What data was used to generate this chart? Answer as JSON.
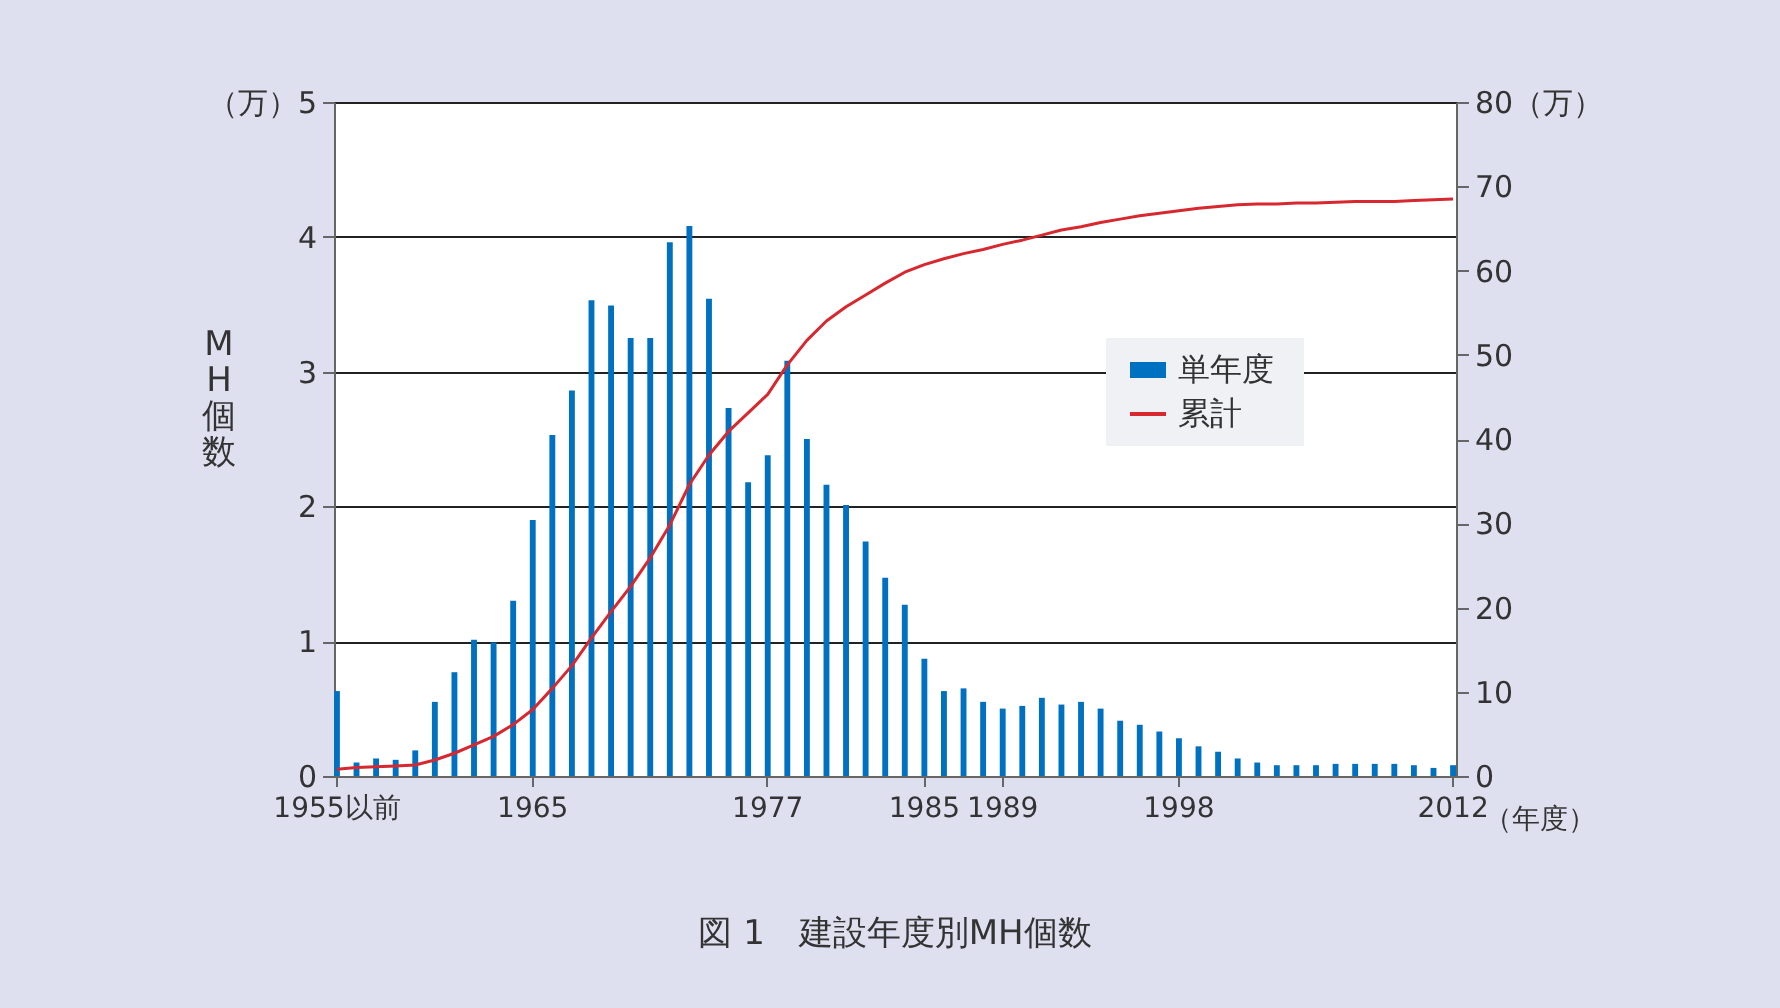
{
  "chart_data": {
    "type": "bar",
    "title": "図 1　建設年度別MH個数",
    "ylabel": "MH個数",
    "xlabel": "（年度）",
    "categories": [
      "1955以前",
      null,
      null,
      null,
      null,
      null,
      null,
      null,
      null,
      null,
      "1965",
      null,
      null,
      null,
      null,
      null,
      null,
      null,
      null,
      null,
      null,
      null,
      "1977",
      null,
      null,
      null,
      null,
      null,
      null,
      null,
      "1985",
      null,
      null,
      null,
      "1989",
      null,
      null,
      null,
      null,
      null,
      null,
      null,
      null,
      "1998",
      null,
      null,
      null,
      null,
      null,
      null,
      null,
      null,
      null,
      null,
      null,
      null,
      null,
      "2012"
    ],
    "series": [
      {
        "name": "単年度",
        "axis": "y",
        "color": "#0070c0",
        "values": [
          0.63,
          0.1,
          0.13,
          0.12,
          0.19,
          0.55,
          0.77,
          1.01,
          0.99,
          1.3,
          1.9,
          2.53,
          2.86,
          3.53,
          3.49,
          3.25,
          3.25,
          3.96,
          4.08,
          3.54,
          2.73,
          2.18,
          2.38,
          3.08,
          2.5,
          2.16,
          2.01,
          1.74,
          1.47,
          1.27,
          0.87,
          0.63,
          0.65,
          0.55,
          0.5,
          0.52,
          0.58,
          0.53,
          0.55,
          0.5,
          0.41,
          0.38,
          0.33,
          0.28,
          0.22,
          0.18,
          0.13,
          0.1,
          0.08,
          0.08,
          0.08,
          0.09,
          0.09,
          0.09,
          0.09,
          0.08,
          0.06,
          0.08
        ]
      },
      {
        "name": "累計",
        "type": "line",
        "axis": "y2",
        "color": "#d7282f",
        "values": [
          0.8,
          1.0,
          1.1,
          1.2,
          1.3,
          1.9,
          2.7,
          3.7,
          4.7,
          6.1,
          7.9,
          10.4,
          13.1,
          16.4,
          19.5,
          22.5,
          25.9,
          29.8,
          34.6,
          38.1,
          40.9,
          43.1,
          45.3,
          48.8,
          51.7,
          54.0,
          55.7,
          57.1,
          58.5,
          59.8,
          60.7,
          61.4,
          62.0,
          62.5,
          63.1,
          63.6,
          64.2,
          64.8,
          65.2,
          65.7,
          66.1,
          66.5,
          66.8,
          67.1,
          67.4,
          67.6,
          67.8,
          67.9,
          67.9,
          68.0,
          68.0,
          68.1,
          68.2,
          68.2,
          68.2,
          68.3,
          68.4,
          68.5
        ]
      }
    ],
    "ylim": [
      0,
      5
    ],
    "yticks": [
      0,
      1,
      2,
      3,
      4,
      {
        "value": 5,
        "label": "（万）5"
      }
    ],
    "y2lim": [
      0,
      80
    ],
    "y2ticks": [
      0,
      10,
      20,
      30,
      40,
      50,
      60,
      70,
      {
        "value": 80,
        "label": "80（万）"
      }
    ],
    "grid": "y",
    "legend": "right"
  }
}
